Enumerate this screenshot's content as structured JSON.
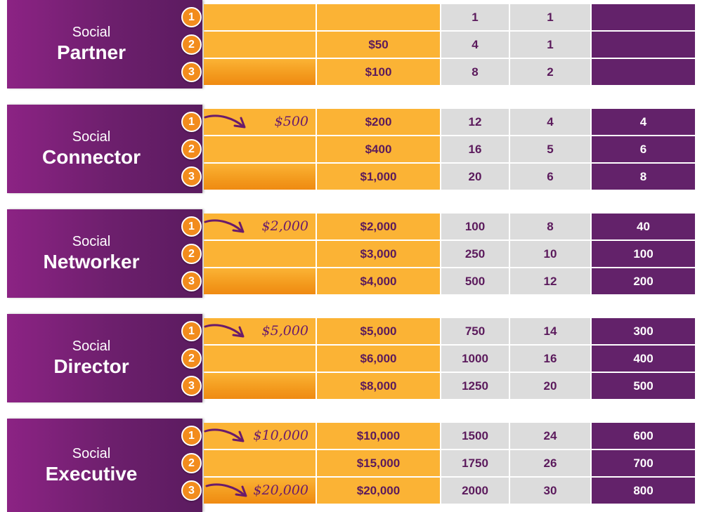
{
  "tiers": [
    {
      "label_small": "Social",
      "label_big": "Partner",
      "rows": [
        {
          "num": "1",
          "hand_value": "",
          "amount": "",
          "col3": "1",
          "col4": "1",
          "col5": ""
        },
        {
          "num": "2",
          "hand_value": "",
          "amount": "$50",
          "col3": "4",
          "col4": "1",
          "col5": ""
        },
        {
          "num": "3",
          "hand_value": "",
          "amount": "$100",
          "col3": "8",
          "col4": "2",
          "col5": ""
        }
      ]
    },
    {
      "label_small": "Social",
      "label_big": "Connector",
      "rows": [
        {
          "num": "1",
          "hand_value": "$500",
          "amount": "$200",
          "col3": "12",
          "col4": "4",
          "col5": "4"
        },
        {
          "num": "2",
          "hand_value": "",
          "amount": "$400",
          "col3": "16",
          "col4": "5",
          "col5": "6"
        },
        {
          "num": "3",
          "hand_value": "",
          "amount": "$1,000",
          "col3": "20",
          "col4": "6",
          "col5": "8"
        }
      ]
    },
    {
      "label_small": "Social",
      "label_big": "Networker",
      "rows": [
        {
          "num": "1",
          "hand_value": "$2,000",
          "amount": "$2,000",
          "col3": "100",
          "col4": "8",
          "col5": "40"
        },
        {
          "num": "2",
          "hand_value": "",
          "amount": "$3,000",
          "col3": "250",
          "col4": "10",
          "col5": "100"
        },
        {
          "num": "3",
          "hand_value": "",
          "amount": "$4,000",
          "col3": "500",
          "col4": "12",
          "col5": "200"
        }
      ]
    },
    {
      "label_small": "Social",
      "label_big": "Director",
      "rows": [
        {
          "num": "1",
          "hand_value": "$5,000",
          "amount": "$5,000",
          "col3": "750",
          "col4": "14",
          "col5": "300"
        },
        {
          "num": "2",
          "hand_value": "",
          "amount": "$6,000",
          "col3": "1000",
          "col4": "16",
          "col5": "400"
        },
        {
          "num": "3",
          "hand_value": "",
          "amount": "$8,000",
          "col3": "1250",
          "col4": "20",
          "col5": "500"
        }
      ]
    },
    {
      "label_small": "Social",
      "label_big": "Executive",
      "rows": [
        {
          "num": "1",
          "hand_value": "$10,000",
          "amount": "$10,000",
          "col3": "1500",
          "col4": "24",
          "col5": "600"
        },
        {
          "num": "2",
          "hand_value": "",
          "amount": "$15,000",
          "col3": "1750",
          "col4": "26",
          "col5": "700"
        },
        {
          "num": "3",
          "hand_value": "$20,000",
          "amount": "$20,000",
          "col3": "2000",
          "col4": "30",
          "col5": "800"
        }
      ]
    }
  ],
  "colors": {
    "purple_label": "#6c1f6c",
    "orange_badge": "#f28c1d",
    "orange_cell": "#fbb335",
    "gray_cell": "#dcdcdc",
    "purple_cell": "#63226a"
  },
  "icons": {
    "arrow": "hand-drawn-arrow-icon"
  }
}
